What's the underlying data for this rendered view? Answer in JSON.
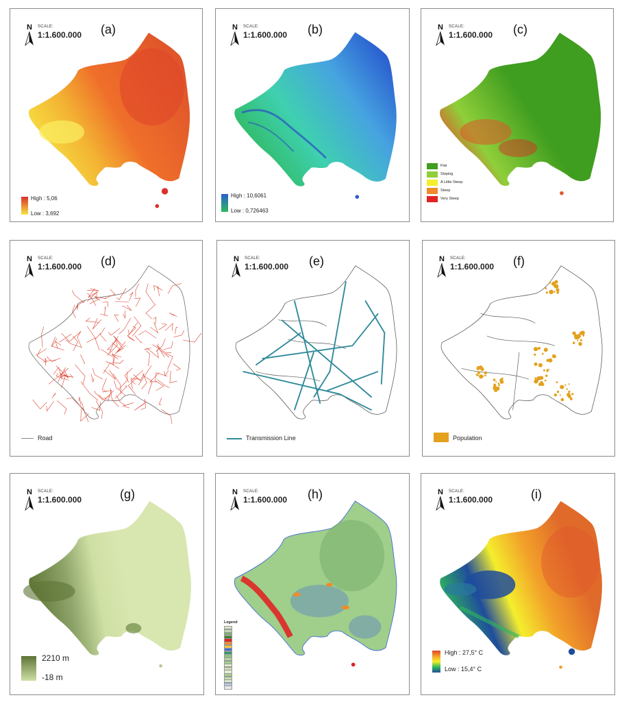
{
  "scale_caption": "SCALE:",
  "scale_value": "1:1.600.000",
  "north_label": "N",
  "panels": {
    "a": {
      "label": "(a)",
      "legend_high": "High : 5,06",
      "legend_low": "Low : 3,692",
      "colors": [
        "#f7e443",
        "#f3b233",
        "#ef6f2a",
        "#d9312a"
      ]
    },
    "b": {
      "label": "(b)",
      "legend_high": "High : 10,6061",
      "legend_low": "Low : 0,726463",
      "colors": [
        "#2a5fd0",
        "#46a3e0",
        "#3fd0b0",
        "#2fb85c"
      ]
    },
    "c": {
      "label": "(c)",
      "legend": [
        "Flat",
        "Sloping",
        "A Little Steep",
        "Steep",
        "Very Steep"
      ],
      "colors": [
        "#3f9d1f",
        "#8fcf3a",
        "#f4ee2c",
        "#f08a2a",
        "#e02424"
      ]
    },
    "d": {
      "label": "(d)",
      "legend": "Road",
      "color": "#d9331f"
    },
    "e": {
      "label": "(e)",
      "legend": "Transmission Line",
      "color": "#2f8a9a"
    },
    "f": {
      "label": "(f)",
      "legend": "Population",
      "color": "#e3a11d"
    },
    "g": {
      "label": "(g)",
      "legend_high": "2210 m",
      "legend_low": "-18 m",
      "colors": [
        "#5d7436",
        "#cfe0a4"
      ]
    },
    "h": {
      "label": "(h)",
      "legend_title": "Legend",
      "colors": [
        "#e02424",
        "#f08a2a",
        "#4a6ed8",
        "#9fcf8a",
        "#6e9a5c"
      ]
    },
    "i": {
      "label": "(i)",
      "legend_high": "High : 27,5° C",
      "legend_low": "Low : 15,4° C",
      "colors": [
        "#e0452a",
        "#f2a02a",
        "#f4ee2c",
        "#2fb85c",
        "#1f4c9c"
      ]
    }
  },
  "ticks_x": [
    "103",
    "104",
    "104",
    "105",
    "105",
    "106"
  ],
  "ticks_y": [
    "-4",
    "-4",
    "-5",
    "-5",
    "-6"
  ]
}
